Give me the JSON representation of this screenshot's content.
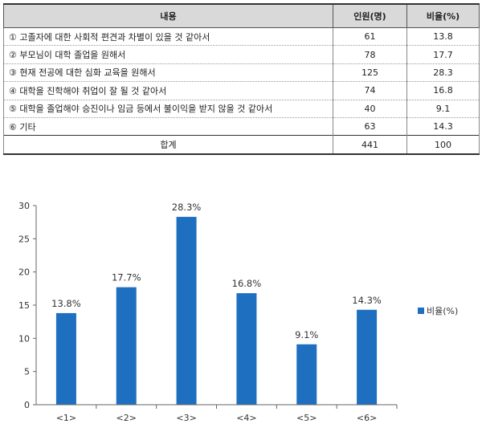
{
  "table": {
    "headers": [
      "내용",
      "인원(명)",
      "비율(%)"
    ],
    "rows": [
      {
        "label": "① 고졸자에 대한 사회적 편견과 차별이 있을 것 같아서",
        "count": "61",
        "ratio": "13.8"
      },
      {
        "label": "② 부모님이 대학 졸업을 원해서",
        "count": "78",
        "ratio": "17.7"
      },
      {
        "label": "③ 현재 전공에 대한 심화 교육을 원해서",
        "count": "125",
        "ratio": "28.3"
      },
      {
        "label": "④ 대학을 진학해야 취업이 잘 될 것 같아서",
        "count": "74",
        "ratio": "16.8"
      },
      {
        "label": "⑤ 대학을 졸업해야 승진이나 임금 등에서 불이익을 받지 않을 것 같아서",
        "count": "40",
        "ratio": "9.1"
      },
      {
        "label": "⑥ 기타",
        "count": "63",
        "ratio": "14.3"
      }
    ],
    "total": {
      "label": "합계",
      "count": "441",
      "ratio": "100"
    }
  },
  "chart_data": {
    "type": "bar",
    "categories": [
      "<1>",
      "<2>",
      "<3>",
      "<4>",
      "<5>",
      "<6>"
    ],
    "series": [
      {
        "name": "비율(%)",
        "values": [
          13.8,
          17.7,
          28.3,
          16.8,
          9.1,
          14.3
        ]
      }
    ],
    "data_labels": [
      "13.8%",
      "17.7%",
      "28.3%",
      "16.8%",
      "9.1%",
      "14.3%"
    ],
    "yticks": [
      0,
      5,
      10,
      15,
      20,
      25,
      30
    ],
    "ylim": [
      0,
      30
    ],
    "grid": false,
    "legend": "right",
    "bar_color": "#1f6fc0"
  }
}
